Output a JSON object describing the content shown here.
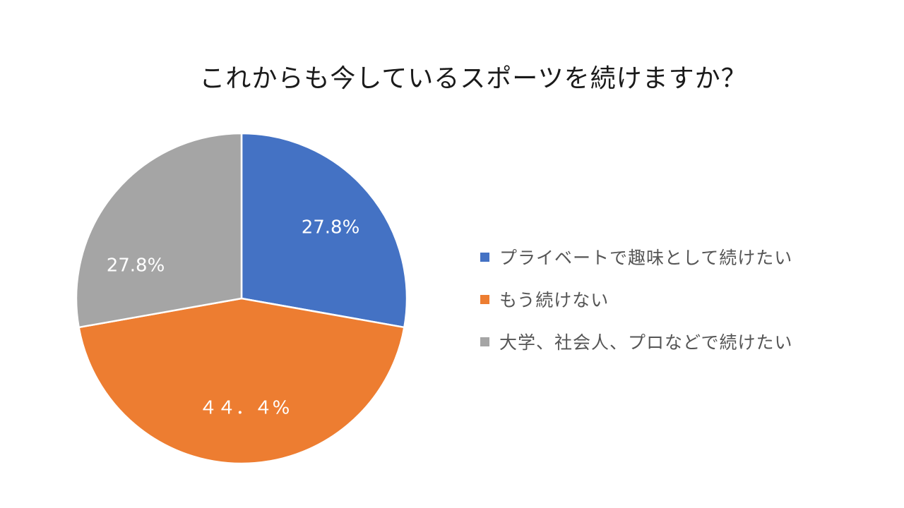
{
  "chart_data": {
    "type": "pie",
    "title": "これからも今しているスポーツを続けますか？",
    "legend_position": "right",
    "slices": [
      {
        "name": "プライベートで趣味として続けたい",
        "value": 27.8,
        "label": "27.8%",
        "color": "#4472C4"
      },
      {
        "name": "もう続けない",
        "value": 44.4,
        "label": "４４．４%",
        "color": "#ED7D31"
      },
      {
        "name": "大学、社会人、プロなどで続けたい",
        "value": 27.8,
        "label": "27.8%",
        "color": "#A5A5A5"
      }
    ]
  }
}
